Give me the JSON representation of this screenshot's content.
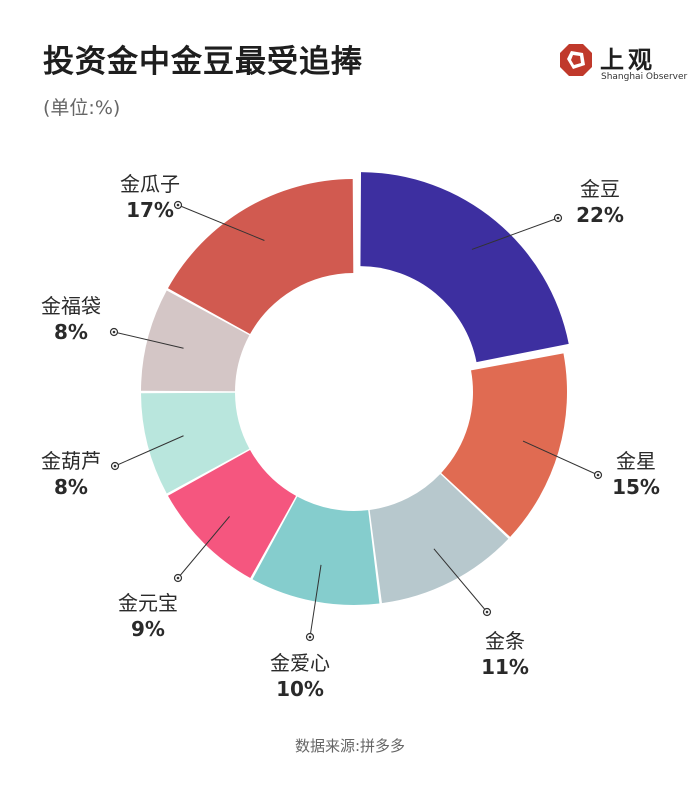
{
  "header": {
    "title": "投资金中金豆最受追捧",
    "unit": "(单位:%)"
  },
  "logo": {
    "name": "上观",
    "subtitle": "Shanghai Observer",
    "icon": "shanghai-observer-logo-icon",
    "color": "#c0392b"
  },
  "footer": {
    "source": "数据来源:拼多多"
  },
  "chart_data": {
    "type": "pie",
    "donut": true,
    "categories": [
      "金豆",
      "金星",
      "金条",
      "金爱心",
      "金元宝",
      "金葫芦",
      "金福袋",
      "金瓜子"
    ],
    "values": [
      22,
      15,
      11,
      10,
      9,
      8,
      8,
      17
    ],
    "value_labels": [
      "22%",
      "15%",
      "11%",
      "10%",
      "9%",
      "8%",
      "8%",
      "17%"
    ],
    "colors": [
      "#3d2fa0",
      "#e06b52",
      "#b7c8cd",
      "#85cdcd",
      "#f5567f",
      "#b9e6dd",
      "#d4c6c6",
      "#d15a50"
    ],
    "exploded": "金豆",
    "start_angle": "12 o'clock",
    "direction": "clockwise"
  }
}
